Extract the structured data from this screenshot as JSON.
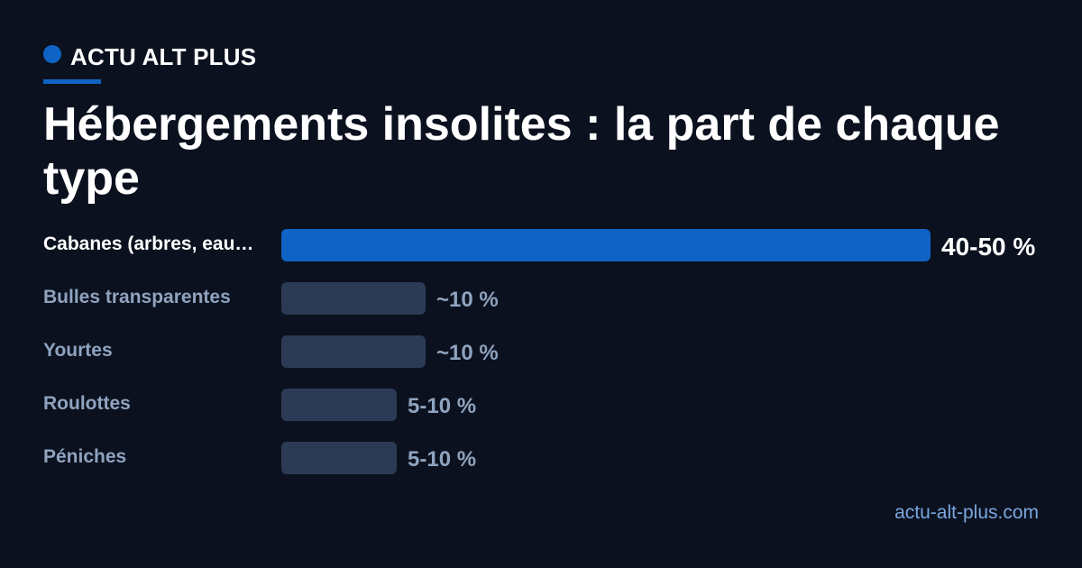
{
  "brand": {
    "name": "ACTU ALT PLUS",
    "accent_color": "#0f63c4"
  },
  "header": {
    "title": "Hébergements insolites : la part de chaque type"
  },
  "footer": {
    "site": "actu-alt-plus.com"
  },
  "colors": {
    "highlight_bar": "#0f63c4",
    "bar": "#2c3b55",
    "highlight_label": "#ffffff",
    "label": "#8fa3bf"
  },
  "chart_data": {
    "type": "bar",
    "orientation": "horizontal",
    "categories": [
      "Cabanes (arbres, eau…",
      "Bulles transparentes",
      "Yourtes",
      "Roulottes",
      "Péniches"
    ],
    "values": [
      45,
      10,
      10,
      8,
      8
    ],
    "value_labels": [
      "40-50 %",
      "~10 %",
      "~10 %",
      "5-10 %",
      "5-10 %"
    ],
    "highlight_index": 0,
    "title": "Hébergements insolites : la part de chaque type",
    "xlabel": "",
    "ylabel": "",
    "xlim": [
      0,
      45
    ],
    "grid": false,
    "legend": "none"
  }
}
